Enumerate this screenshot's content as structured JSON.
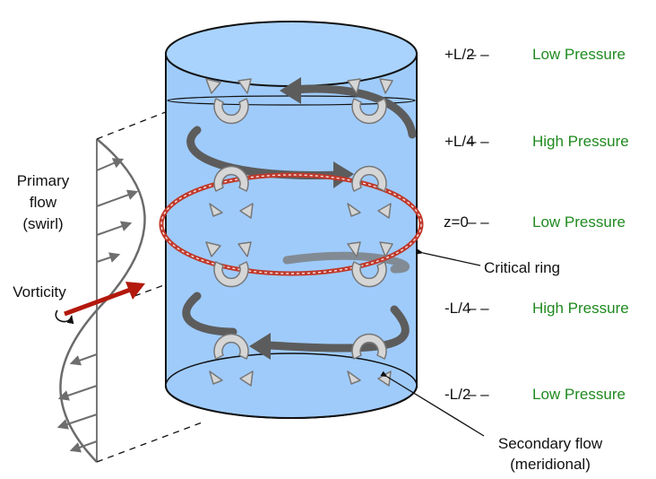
{
  "levels": [
    {
      "position": "+L/2",
      "pressure": "Low Pressure"
    },
    {
      "position": "+L/4",
      "pressure": "High Pressure"
    },
    {
      "position": "z=0",
      "pressure": "Low Pressure"
    },
    {
      "position": "-L/4",
      "pressure": "High Pressure"
    },
    {
      "position": "-L/2",
      "pressure": "Low Pressure"
    }
  ],
  "dash_separator": "– –",
  "labels": {
    "primary_flow": [
      "Primary",
      "flow",
      "(swirl)"
    ],
    "vorticity": "Vorticity",
    "critical_ring": "Critical ring",
    "secondary_flow": [
      "Secondary flow",
      "(meridional)"
    ]
  },
  "colors": {
    "cylinder_fill": "#9fcbfb",
    "cylinder_top": "#a9d3fc",
    "pressure_text": "#1f8a1f",
    "ring": "#c0392b",
    "vorticity_arrow": "#b3190c",
    "swirl_arrow": "#5c5c5c",
    "vortex_fill": "#d6d6d6",
    "profile_line": "#666666"
  }
}
